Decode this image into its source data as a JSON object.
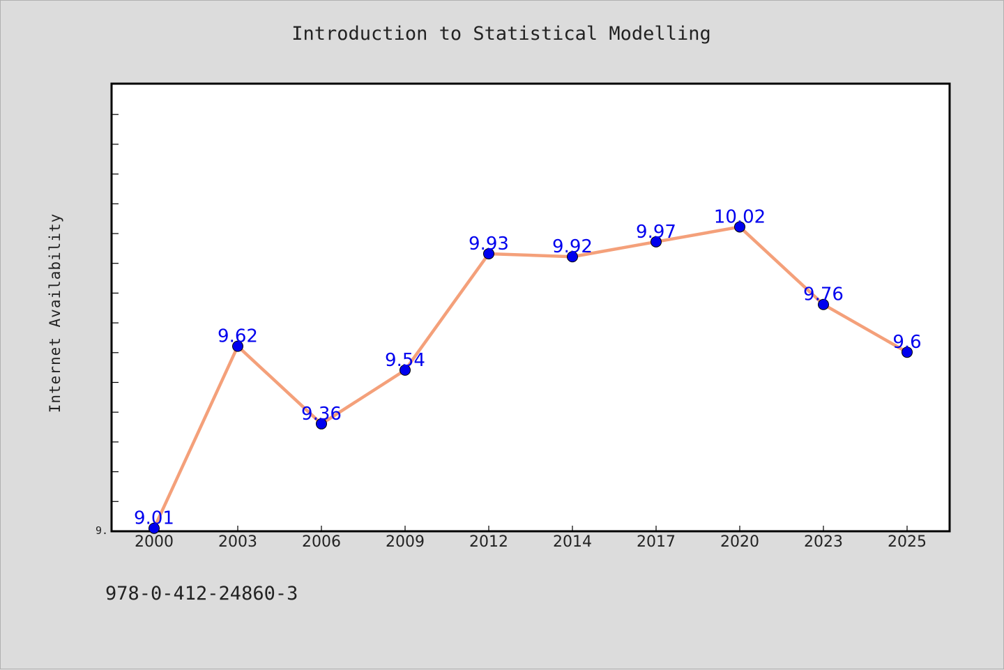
{
  "chart_data": {
    "type": "line",
    "title": "Introduction to Statistical Modelling",
    "xlabel": "",
    "ylabel": "Internet Availability",
    "categories": [
      "2000",
      "2003",
      "2006",
      "2009",
      "2012",
      "2014",
      "2017",
      "2020",
      "2023",
      "2025"
    ],
    "series": [
      {
        "values": [
          9.01,
          9.62,
          9.36,
          9.54,
          9.93,
          9.92,
          9.97,
          10.02,
          9.76,
          9.6
        ],
        "labels": [
          "9.01",
          "9.62",
          "9.36",
          "9.54",
          "9.93",
          "9.92",
          "9.97",
          "10.02",
          "9.76",
          "9.6"
        ],
        "line_color": "#f4a07a",
        "marker_color": "#0000ee"
      }
    ],
    "ylim": [
      9.0,
      10.5
    ],
    "ytick_label": "9.",
    "grid": false,
    "legend": "none"
  },
  "footer": {
    "isbn": "978-0-412-24860-3"
  },
  "colors": {
    "background": "#dcdcdc",
    "plot_area": "#ffffff",
    "data_label": "#0000ee"
  }
}
